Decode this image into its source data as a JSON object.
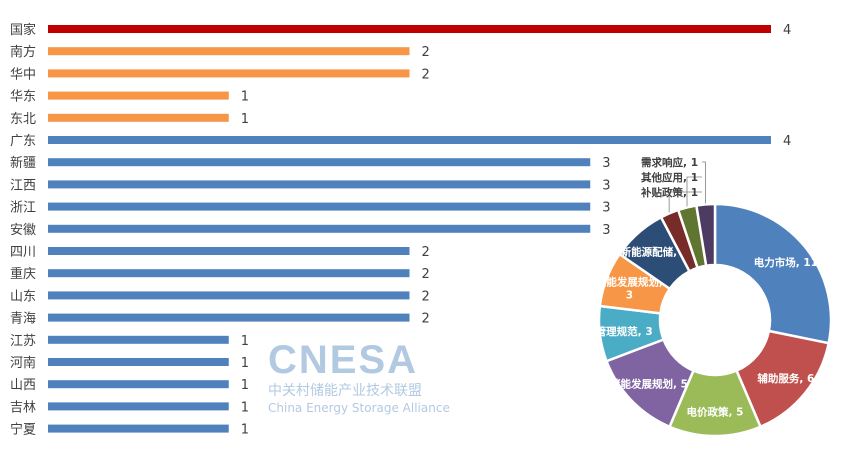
{
  "chart_data": [
    {
      "type": "bar",
      "orientation": "horizontal",
      "categories": [
        "国家",
        "南方",
        "华中",
        "华东",
        "东北",
        "广东",
        "新疆",
        "江西",
        "浙江",
        "安徽",
        "四川",
        "重庆",
        "山东",
        "青海",
        "江苏",
        "河南",
        "山西",
        "吉林",
        "宁夏"
      ],
      "values": [
        4,
        2,
        2,
        1,
        1,
        4,
        3,
        3,
        3,
        3,
        2,
        2,
        2,
        2,
        1,
        1,
        1,
        1,
        1
      ],
      "bar_colors": [
        "#C00000",
        "#F79646",
        "#F79646",
        "#F79646",
        "#F79646",
        "#4F81BD",
        "#4F81BD",
        "#4F81BD",
        "#4F81BD",
        "#4F81BD",
        "#4F81BD",
        "#4F81BD",
        "#4F81BD",
        "#4F81BD",
        "#4F81BD",
        "#4F81BD",
        "#4F81BD",
        "#4F81BD",
        "#4F81BD"
      ],
      "xlim": [
        0,
        4
      ],
      "grid": false,
      "data_labels": true
    },
    {
      "type": "pie",
      "donut": true,
      "labels": [
        "电力市场",
        "辅助服务",
        "电价政策",
        "储能发展规划",
        "管理规范",
        "储能发展规划",
        "新能源配储",
        "补贴政策",
        "其他应用",
        "需求响应"
      ],
      "values": [
        11,
        6,
        5,
        5,
        3,
        3,
        3,
        1,
        1,
        1
      ],
      "colors": [
        "#4F81BD",
        "#C0504D",
        "#9BBB59",
        "#8064A2",
        "#4BACC6",
        "#F79646",
        "#2C4D75",
        "#772C2A",
        "#5F7530",
        "#4D3B62"
      ]
    }
  ],
  "watermark": {
    "logo": "CNESA",
    "cn": "中关村储能产业技术联盟",
    "en": "China Energy Storage Alliance"
  }
}
